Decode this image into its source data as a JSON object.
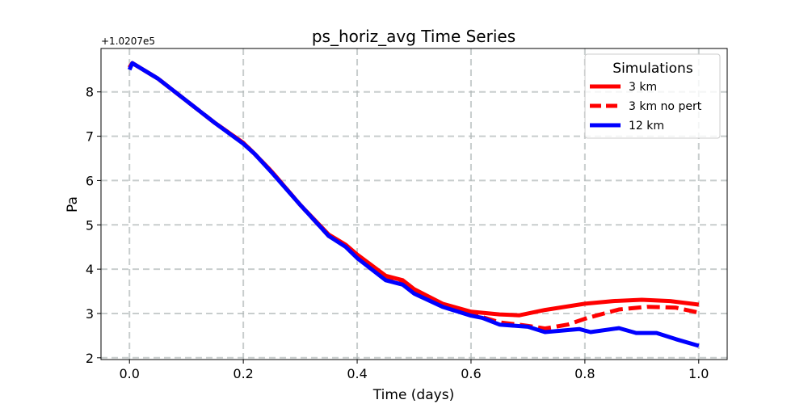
{
  "chart_data": {
    "type": "line",
    "title": "ps_horiz_avg Time Series",
    "xlabel": "Time (days)",
    "ylabel": "Pa",
    "offset_label": "+1.0207e5",
    "xlim": [
      -0.05,
      1.05
    ],
    "ylim": [
      1.96,
      8.98
    ],
    "xticks": [
      0.0,
      0.2,
      0.4,
      0.6,
      0.8,
      1.0
    ],
    "xtick_labels": [
      "0.0",
      "0.2",
      "0.4",
      "0.6",
      "0.8",
      "1.0"
    ],
    "yticks": [
      2,
      3,
      4,
      5,
      6,
      7,
      8
    ],
    "ytick_labels": [
      "2",
      "3",
      "4",
      "5",
      "6",
      "7",
      "8"
    ],
    "grid": true,
    "legend": {
      "title": "Simulations",
      "placement": "top-right"
    },
    "series": [
      {
        "name": "3 km",
        "color": "#ff0000",
        "style": "solid",
        "x": [
          0,
          0.005,
          0.05,
          0.1,
          0.15,
          0.2,
          0.22,
          0.25,
          0.3,
          0.35,
          0.38,
          0.4,
          0.45,
          0.48,
          0.5,
          0.55,
          0.6,
          0.65,
          0.685,
          0.73,
          0.8,
          0.85,
          0.9,
          0.95,
          1.0
        ],
        "y": [
          8.55,
          8.65,
          8.3,
          7.8,
          7.3,
          6.85,
          6.6,
          6.2,
          5.45,
          4.78,
          4.55,
          4.33,
          3.85,
          3.75,
          3.55,
          3.22,
          3.04,
          2.98,
          2.96,
          3.08,
          3.22,
          3.28,
          3.31,
          3.28,
          3.2
        ]
      },
      {
        "name": "3 km no pert",
        "color": "#ff0000",
        "style": "dashed",
        "x": [
          0,
          0.005,
          0.05,
          0.1,
          0.15,
          0.2,
          0.22,
          0.25,
          0.3,
          0.35,
          0.38,
          0.4,
          0.45,
          0.48,
          0.5,
          0.55,
          0.6,
          0.62,
          0.65,
          0.7,
          0.73,
          0.77,
          0.805,
          0.86,
          0.91,
          0.96,
          1.0
        ],
        "y": [
          8.55,
          8.65,
          8.3,
          7.8,
          7.3,
          6.85,
          6.6,
          6.2,
          5.45,
          4.75,
          4.52,
          4.28,
          3.8,
          3.7,
          3.5,
          3.18,
          2.98,
          2.92,
          2.8,
          2.72,
          2.66,
          2.75,
          2.9,
          3.09,
          3.15,
          3.13,
          3.02
        ]
      },
      {
        "name": "12 km",
        "color": "#0000ff",
        "style": "solid",
        "x": [
          0,
          0.005,
          0.05,
          0.1,
          0.15,
          0.2,
          0.22,
          0.25,
          0.3,
          0.35,
          0.38,
          0.4,
          0.45,
          0.48,
          0.5,
          0.55,
          0.6,
          0.62,
          0.65,
          0.7,
          0.73,
          0.79,
          0.81,
          0.86,
          0.89,
          0.926,
          0.96,
          1.0
        ],
        "y": [
          8.5,
          8.65,
          8.3,
          7.8,
          7.3,
          6.83,
          6.6,
          6.18,
          5.45,
          4.75,
          4.5,
          4.25,
          3.75,
          3.65,
          3.45,
          3.15,
          2.95,
          2.9,
          2.75,
          2.7,
          2.58,
          2.65,
          2.58,
          2.67,
          2.56,
          2.56,
          2.42,
          2.27
        ]
      }
    ]
  }
}
